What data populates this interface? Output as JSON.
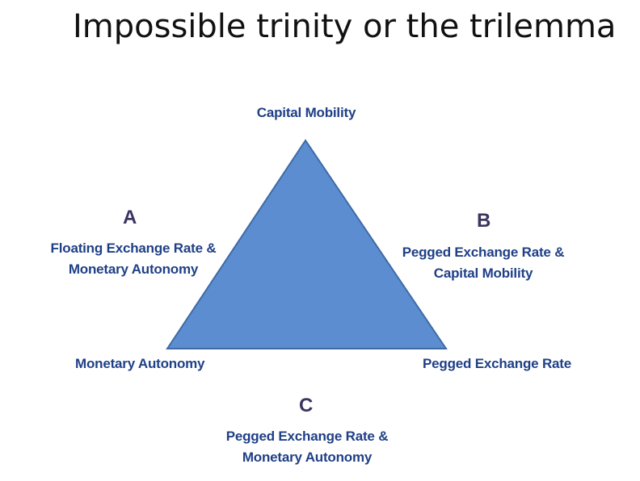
{
  "title": "Impossible trinity or the trilemma",
  "colors": {
    "triangle_fill": "#5b8dd0",
    "triangle_stroke": "#3e6ba6",
    "label_text": "#1f3f86",
    "letter_text": "#3a3560"
  },
  "vertices": {
    "top": "Capital Mobility",
    "bottom_left": "Monetary Autonomy",
    "bottom_right": "Pegged Exchange Rate"
  },
  "sides": {
    "a": {
      "letter": "A",
      "line1": "Floating Exchange Rate &",
      "line2": "Monetary Autonomy"
    },
    "b": {
      "letter": "B",
      "line1": "Pegged Exchange Rate &",
      "line2": "Capital Mobility"
    },
    "c": {
      "letter": "C",
      "line1": "Pegged Exchange Rate &",
      "line2": "Monetary Autonomy"
    }
  }
}
